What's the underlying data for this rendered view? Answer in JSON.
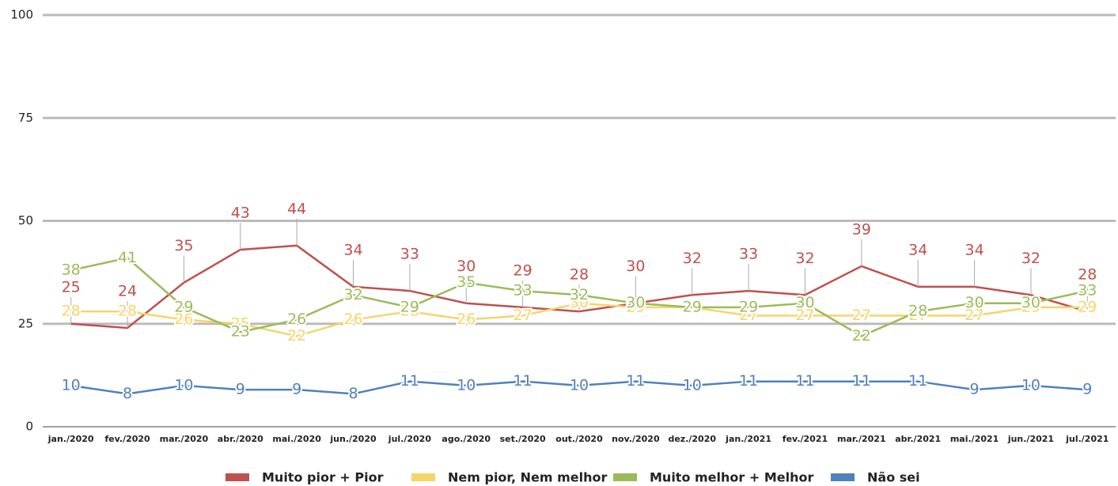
{
  "chart_data": {
    "type": "line",
    "categories": [
      "jan./2020",
      "fev./2020",
      "mar./2020",
      "abr./2020",
      "mai./2020",
      "jun./2020",
      "jul./2020",
      "ago./2020",
      "set./2020",
      "out./2020",
      "nov./2020",
      "dez./2020",
      "jan./2021",
      "fev./2021",
      "mar./2021",
      "abr./2021",
      "mai./2021",
      "jun./2021",
      "jul./2021"
    ],
    "series": [
      {
        "name": "Muito pior + Pior",
        "color": "#c0504d",
        "values": [
          25,
          24,
          35,
          43,
          44,
          34,
          33,
          30,
          29,
          28,
          30,
          32,
          33,
          32,
          39,
          34,
          34,
          32,
          28
        ]
      },
      {
        "name": "Nem pior, Nem melhor",
        "color": "#f7d46a",
        "values": [
          28,
          28,
          26,
          25,
          22,
          26,
          28,
          26,
          27,
          30,
          29,
          29,
          27,
          27,
          27,
          27,
          27,
          29,
          29
        ]
      },
      {
        "name": "Muito melhor + Melhor",
        "color": "#9bbb59",
        "values": [
          38,
          41,
          29,
          23,
          26,
          32,
          29,
          35,
          33,
          32,
          30,
          29,
          29,
          30,
          22,
          28,
          30,
          30,
          33
        ]
      },
      {
        "name": "Não sei",
        "color": "#4f81bd",
        "values": [
          10,
          8,
          10,
          9,
          9,
          8,
          11,
          10,
          11,
          10,
          11,
          10,
          11,
          11,
          11,
          11,
          9,
          10,
          9
        ]
      }
    ],
    "ylim": [
      0,
      100
    ],
    "yticks": [
      0,
      25,
      50,
      75,
      100
    ],
    "grid": true
  }
}
